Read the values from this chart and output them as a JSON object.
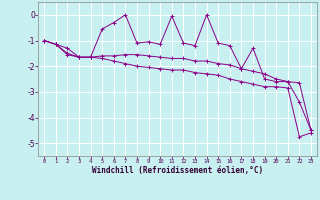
{
  "xlabel": "Windchill (Refroidissement éolien,°C)",
  "x": [
    0,
    1,
    2,
    3,
    4,
    5,
    6,
    7,
    8,
    9,
    10,
    11,
    12,
    13,
    14,
    15,
    16,
    17,
    18,
    19,
    20,
    21,
    22,
    23
  ],
  "y_max": [
    -1.0,
    -1.15,
    -1.3,
    -1.65,
    -1.65,
    -0.55,
    -0.3,
    0.0,
    -1.1,
    -1.05,
    -1.15,
    -0.05,
    -1.1,
    -1.2,
    0.0,
    -1.1,
    -1.2,
    -2.1,
    -1.3,
    -2.5,
    -2.6,
    -2.6,
    -3.4,
    -4.5
  ],
  "y_mean": [
    -1.0,
    -1.15,
    -1.5,
    -1.65,
    -1.65,
    -1.6,
    -1.6,
    -1.55,
    -1.55,
    -1.6,
    -1.65,
    -1.7,
    -1.7,
    -1.8,
    -1.8,
    -1.9,
    -1.95,
    -2.1,
    -2.2,
    -2.3,
    -2.5,
    -2.6,
    -2.65,
    -4.5
  ],
  "y_min": [
    -1.0,
    -1.15,
    -1.55,
    -1.65,
    -1.65,
    -1.7,
    -1.8,
    -1.9,
    -2.0,
    -2.05,
    -2.1,
    -2.15,
    -2.15,
    -2.25,
    -2.3,
    -2.35,
    -2.5,
    -2.6,
    -2.7,
    -2.8,
    -2.8,
    -2.85,
    -4.75,
    -4.6
  ],
  "line_color": "#8b008b",
  "bg_color": "#c8f0f0",
  "grid_color": "#b0dede",
  "ylim": [
    -5.5,
    0.5
  ],
  "yticks": [
    0,
    -1,
    -2,
    -3,
    -4,
    -5
  ],
  "xlim": [
    -0.5,
    23.5
  ]
}
